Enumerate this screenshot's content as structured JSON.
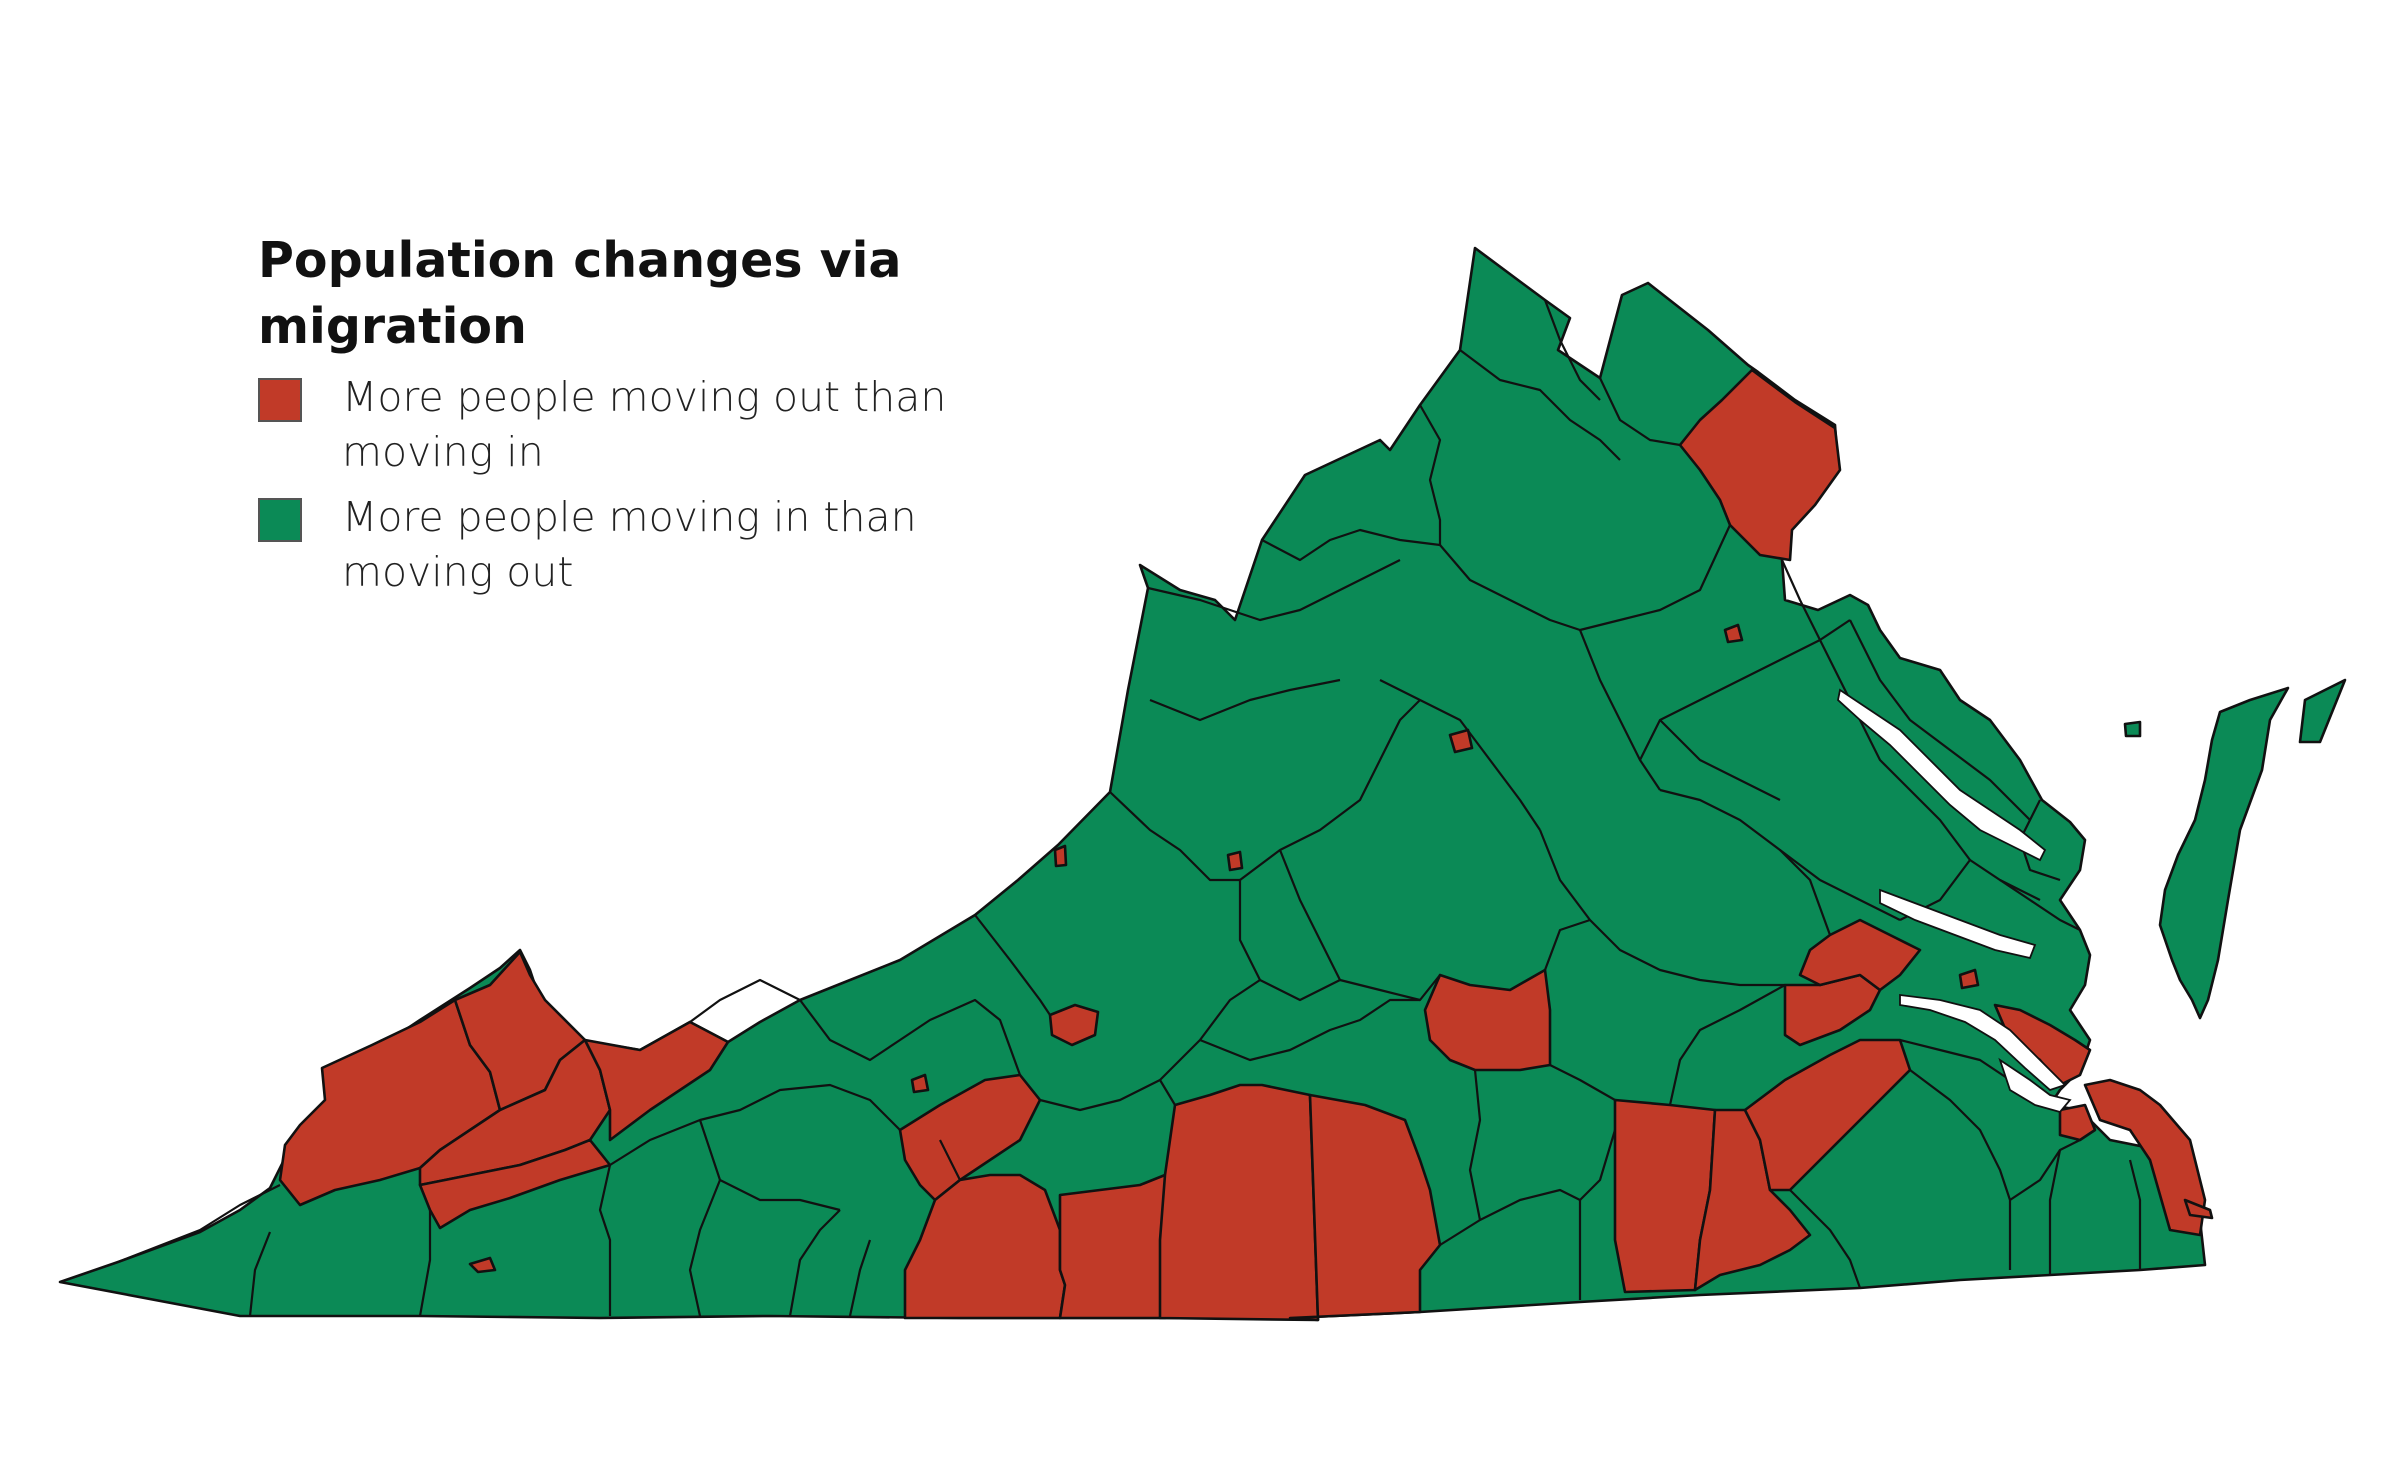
{
  "legend": {
    "title": "Population changes via migration",
    "items": [
      {
        "label": "More people moving out than moving in",
        "color": "#c13a28",
        "category": "out"
      },
      {
        "label": "More people moving in than moving out",
        "color": "#0b8a56",
        "category": "in"
      }
    ]
  },
  "map": {
    "region": "Virginia",
    "unit": "county",
    "colors": {
      "out": "#c13a28",
      "in": "#0b8a56",
      "boundary": "#111111"
    }
  }
}
